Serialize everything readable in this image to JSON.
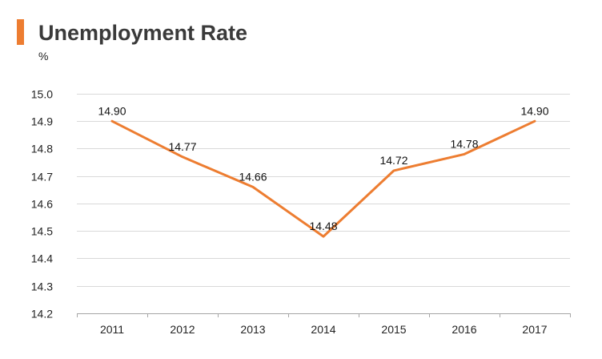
{
  "colors": {
    "accent": "#ED7D31",
    "line": "#ED7D31",
    "grid": "#D9D9D9",
    "axis": "#A6A6A6",
    "text": "#222222"
  },
  "header": {
    "title": "Unemployment Rate",
    "unit": "%"
  },
  "chart_data": {
    "type": "line",
    "title": "Unemployment Rate",
    "ylabel": "%",
    "xlabel": "",
    "categories": [
      "2011",
      "2012",
      "2013",
      "2014",
      "2015",
      "2016",
      "2017"
    ],
    "series": [
      {
        "name": "Unemployment Rate",
        "values": [
          14.9,
          14.77,
          14.66,
          14.48,
          14.72,
          14.78,
          14.9
        ],
        "labels": [
          "14.90",
          "14.77",
          "14.66",
          "14.48",
          "14.72",
          "14.78",
          "14.90"
        ]
      }
    ],
    "ylim": [
      14.2,
      15.0
    ],
    "yticks": [
      "15.0",
      "14.9",
      "14.8",
      "14.7",
      "14.6",
      "14.5",
      "14.4",
      "14.3",
      "14.2"
    ],
    "grid": true,
    "legend": "none"
  }
}
